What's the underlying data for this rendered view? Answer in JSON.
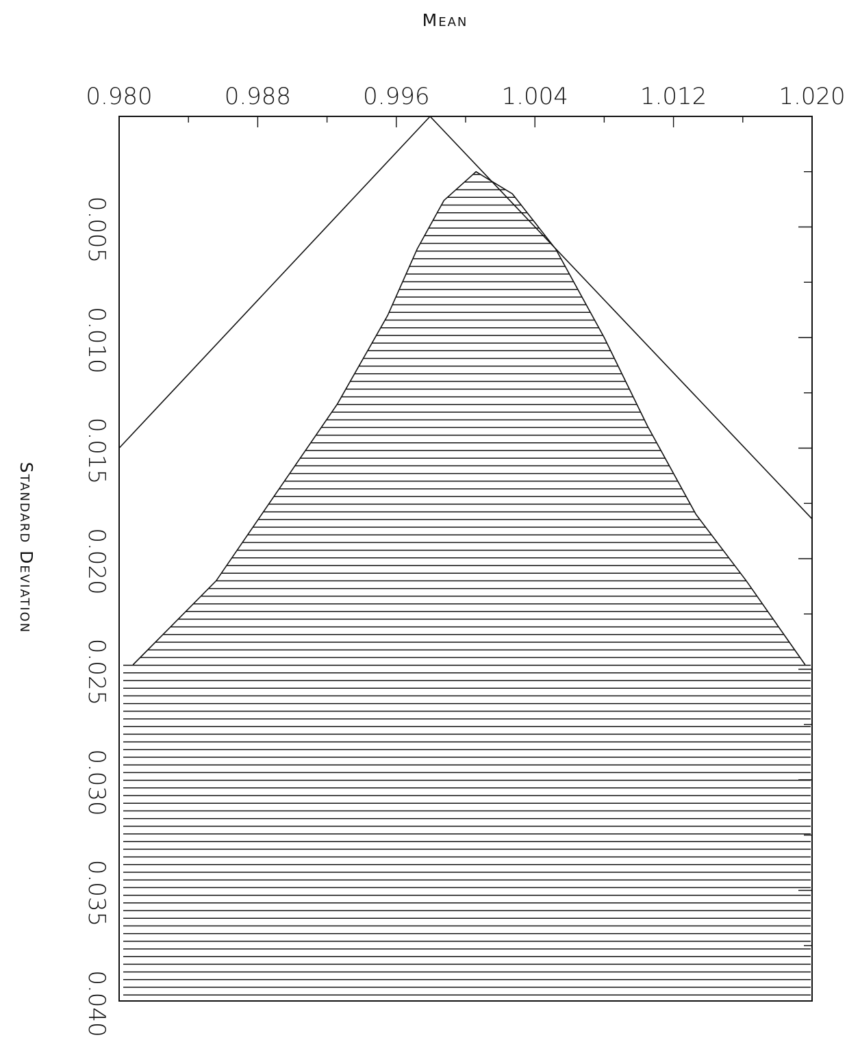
{
  "chart_data": {
    "type": "area",
    "xlabel": "Mean",
    "ylabel": "Standard Deviation",
    "xlim": [
      0.98,
      1.02
    ],
    "ylim": [
      0.0,
      0.04
    ],
    "y_inverted": true,
    "x_ticks_major": [
      "0.980",
      "0.988",
      "0.996",
      "1.004",
      "1.012",
      "1.020"
    ],
    "y_ticks_major": [
      "0.005",
      "0.010",
      "0.015",
      "0.020",
      "0.025",
      "0.030",
      "0.035",
      "0.040"
    ],
    "x_axis_position": "top",
    "y_axis_labels_rotated": true,
    "grid": false,
    "legend": "none",
    "fill_pattern": "horizontal-hatch",
    "series": [
      {
        "kind": "line",
        "x": [
          0.98,
          0.99795,
          1.02
        ],
        "y": [
          0.015,
          0.0,
          0.0182
        ]
      },
      {
        "kind": "hatched-region",
        "boundary_x": [
          0.9808,
          0.9856,
          0.9891,
          0.9926,
          0.9955,
          0.9972,
          0.99875,
          1.0006,
          1.0027,
          1.0052,
          1.008,
          1.0105,
          1.0133,
          1.0162,
          1.0196
        ],
        "boundary_y": [
          0.0248,
          0.021,
          0.017,
          0.013,
          0.009,
          0.006,
          0.0038,
          0.0025,
          0.0035,
          0.006,
          0.01,
          0.014,
          0.018,
          0.021,
          0.0248
        ]
      }
    ]
  }
}
